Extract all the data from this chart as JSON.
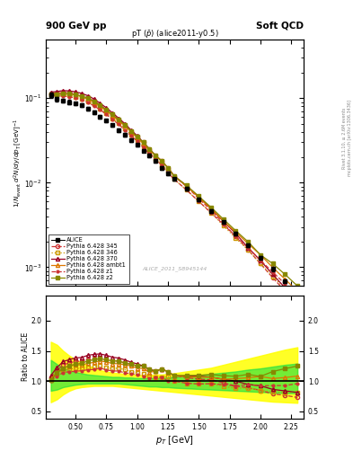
{
  "title_left": "900 GeV pp",
  "title_right": "Soft QCD",
  "plot_title": "pT ($\\bar{p}$) (alice2011-y0.5)",
  "watermark": "ALICE_2011_S8945144",
  "right_label_top": "Rivet 3.1.10, ≥ 2.6M events",
  "right_label_bot": "mcplots.cern.ch [arXiv:1306.3436]",
  "xlabel": "$p_T$ [GeV]",
  "ylabel_main": "$1/N_{\\rm event}\\,d^2N/dy/dp_T\\,[{\\rm GeV}]^{-1}$",
  "ylabel_ratio": "Ratio to ALICE",
  "pt_values": [
    0.3,
    0.35,
    0.4,
    0.45,
    0.5,
    0.55,
    0.6,
    0.65,
    0.7,
    0.75,
    0.8,
    0.85,
    0.9,
    0.95,
    1.0,
    1.05,
    1.1,
    1.15,
    1.2,
    1.25,
    1.3,
    1.4,
    1.5,
    1.6,
    1.7,
    1.8,
    1.9,
    2.0,
    2.1,
    2.2,
    2.3
  ],
  "alice_y": [
    0.108,
    0.098,
    0.093,
    0.09,
    0.086,
    0.082,
    0.075,
    0.068,
    0.06,
    0.054,
    0.048,
    0.042,
    0.037,
    0.032,
    0.028,
    0.024,
    0.021,
    0.018,
    0.015,
    0.013,
    0.011,
    0.0085,
    0.0063,
    0.0046,
    0.0034,
    0.0025,
    0.0018,
    0.0013,
    0.00095,
    0.00068,
    0.00048
  ],
  "alice_yerr": [
    0.008,
    0.006,
    0.005,
    0.005,
    0.004,
    0.004,
    0.003,
    0.003,
    0.003,
    0.002,
    0.002,
    0.002,
    0.0015,
    0.0013,
    0.001,
    0.001,
    0.0009,
    0.0008,
    0.0007,
    0.0006,
    0.0005,
    0.0004,
    0.0003,
    0.00022,
    0.00016,
    0.00012,
    9e-05,
    6.5e-05,
    4.8e-05,
    3.5e-05,
    2.5e-05
  ],
  "p345_y": [
    0.115,
    0.115,
    0.118,
    0.117,
    0.114,
    0.109,
    0.102,
    0.093,
    0.083,
    0.073,
    0.064,
    0.056,
    0.048,
    0.041,
    0.035,
    0.03,
    0.025,
    0.021,
    0.018,
    0.015,
    0.012,
    0.009,
    0.0065,
    0.0047,
    0.0033,
    0.0023,
    0.0016,
    0.0011,
    0.00075,
    0.00052,
    0.00035
  ],
  "p346_y": [
    0.112,
    0.11,
    0.11,
    0.108,
    0.104,
    0.099,
    0.092,
    0.084,
    0.075,
    0.066,
    0.058,
    0.051,
    0.044,
    0.037,
    0.032,
    0.027,
    0.023,
    0.019,
    0.016,
    0.014,
    0.011,
    0.0082,
    0.006,
    0.0044,
    0.0031,
    0.0022,
    0.0016,
    0.0011,
    0.00078,
    0.00055,
    0.00039
  ],
  "p370_y": [
    0.118,
    0.12,
    0.123,
    0.122,
    0.119,
    0.114,
    0.107,
    0.098,
    0.087,
    0.077,
    0.067,
    0.058,
    0.05,
    0.042,
    0.036,
    0.03,
    0.025,
    0.021,
    0.018,
    0.015,
    0.012,
    0.0092,
    0.0068,
    0.0049,
    0.0035,
    0.0025,
    0.0017,
    0.0012,
    0.00082,
    0.00057,
    0.00039
  ],
  "pambt1_y": [
    0.112,
    0.112,
    0.113,
    0.112,
    0.109,
    0.104,
    0.097,
    0.089,
    0.08,
    0.071,
    0.062,
    0.054,
    0.047,
    0.04,
    0.034,
    0.029,
    0.024,
    0.021,
    0.018,
    0.015,
    0.012,
    0.0091,
    0.0067,
    0.0049,
    0.0035,
    0.0026,
    0.0019,
    0.0014,
    0.00099,
    0.00072,
    0.00052
  ],
  "pz1_y": [
    0.108,
    0.106,
    0.106,
    0.104,
    0.1,
    0.096,
    0.089,
    0.081,
    0.073,
    0.064,
    0.056,
    0.049,
    0.042,
    0.036,
    0.031,
    0.026,
    0.022,
    0.019,
    0.016,
    0.013,
    0.011,
    0.0082,
    0.006,
    0.0044,
    0.0032,
    0.0023,
    0.0017,
    0.0012,
    0.00088,
    0.00063,
    0.00046
  ],
  "pz2_y": [
    0.11,
    0.111,
    0.113,
    0.113,
    0.11,
    0.106,
    0.1,
    0.092,
    0.082,
    0.073,
    0.064,
    0.056,
    0.048,
    0.041,
    0.035,
    0.03,
    0.025,
    0.021,
    0.018,
    0.015,
    0.012,
    0.0093,
    0.0069,
    0.0051,
    0.0037,
    0.0027,
    0.002,
    0.0014,
    0.0011,
    0.00082,
    0.0006
  ],
  "band_yellow_low": [
    0.65,
    0.7,
    0.78,
    0.84,
    0.88,
    0.9,
    0.91,
    0.92,
    0.92,
    0.92,
    0.92,
    0.91,
    0.9,
    0.89,
    0.88,
    0.87,
    0.86,
    0.85,
    0.84,
    0.83,
    0.82,
    0.8,
    0.78,
    0.76,
    0.74,
    0.72,
    0.7,
    0.68,
    0.66,
    0.65,
    0.64
  ],
  "band_yellow_high": [
    1.65,
    1.6,
    1.5,
    1.42,
    1.36,
    1.3,
    1.26,
    1.22,
    1.18,
    1.16,
    1.14,
    1.13,
    1.12,
    1.11,
    1.1,
    1.1,
    1.1,
    1.11,
    1.11,
    1.12,
    1.13,
    1.16,
    1.19,
    1.22,
    1.27,
    1.32,
    1.37,
    1.42,
    1.47,
    1.52,
    1.56
  ],
  "band_green_low": [
    0.84,
    0.86,
    0.9,
    0.92,
    0.94,
    0.95,
    0.96,
    0.96,
    0.96,
    0.96,
    0.96,
    0.96,
    0.95,
    0.94,
    0.93,
    0.92,
    0.91,
    0.91,
    0.9,
    0.9,
    0.89,
    0.88,
    0.87,
    0.86,
    0.85,
    0.84,
    0.83,
    0.82,
    0.81,
    0.8,
    0.8
  ],
  "band_green_high": [
    1.35,
    1.28,
    1.22,
    1.18,
    1.15,
    1.13,
    1.11,
    1.1,
    1.09,
    1.08,
    1.07,
    1.07,
    1.06,
    1.06,
    1.05,
    1.05,
    1.05,
    1.05,
    1.05,
    1.06,
    1.07,
    1.08,
    1.1,
    1.12,
    1.14,
    1.16,
    1.19,
    1.21,
    1.24,
    1.27,
    1.29
  ],
  "color_345": "#cc3333",
  "color_346": "#cc9900",
  "color_370": "#990022",
  "color_ambt1": "#dd7700",
  "color_z1": "#cc3333",
  "color_z2": "#888800",
  "xlim": [
    0.26,
    2.35
  ],
  "ylim_main": [
    0.0006,
    0.5
  ],
  "ylim_ratio": [
    0.38,
    2.42
  ],
  "ratio_yticks": [
    0.5,
    1.0,
    1.5,
    2.0
  ],
  "main_yticks_log": true
}
